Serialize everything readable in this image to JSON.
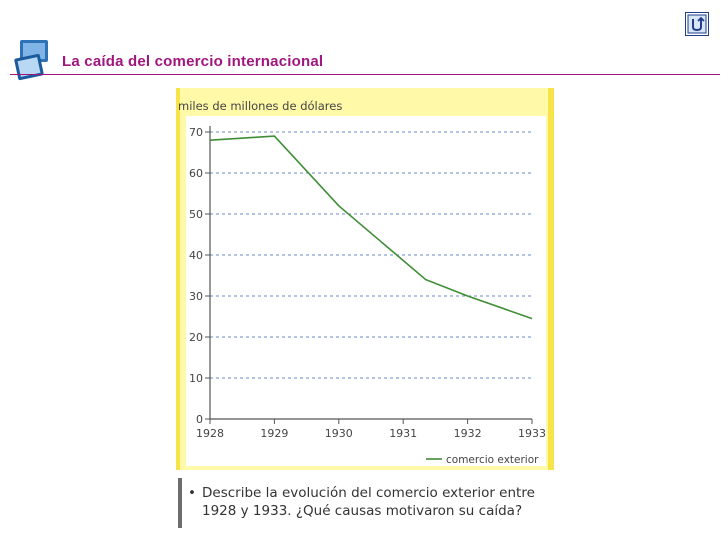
{
  "slide": {
    "title": "La caída del comercio internacional"
  },
  "icons": {
    "header": "monitor-stack-icon",
    "nav": "return-arrow-icon"
  },
  "colors": {
    "title": "#a0167e",
    "panel": "#fff9a8",
    "border": "#f7e34a",
    "line": "#3e8e35",
    "grid": "#6a88c4"
  },
  "chart_data": {
    "type": "line",
    "title": "",
    "ylabel": "miles de millones de dólares",
    "xlabel": "",
    "xlim": [
      1928,
      1933
    ],
    "ylim": [
      0,
      70
    ],
    "xticks": [
      1928,
      1929,
      1930,
      1931,
      1932,
      1933
    ],
    "yticks": [
      0,
      10,
      20,
      30,
      40,
      50,
      60,
      70
    ],
    "grid": true,
    "legend_position": "bottom-right",
    "series": [
      {
        "name": "comercio exterior",
        "x": [
          1928,
          1929,
          1930,
          1931.35,
          1932,
          1933
        ],
        "y": [
          68,
          69,
          52,
          34,
          30,
          24.5
        ]
      }
    ]
  },
  "question": {
    "bullet": "•",
    "text": "Describe la evolución del comercio exterior entre 1928 y 1933. ¿Qué causas motivaron su caída?"
  }
}
